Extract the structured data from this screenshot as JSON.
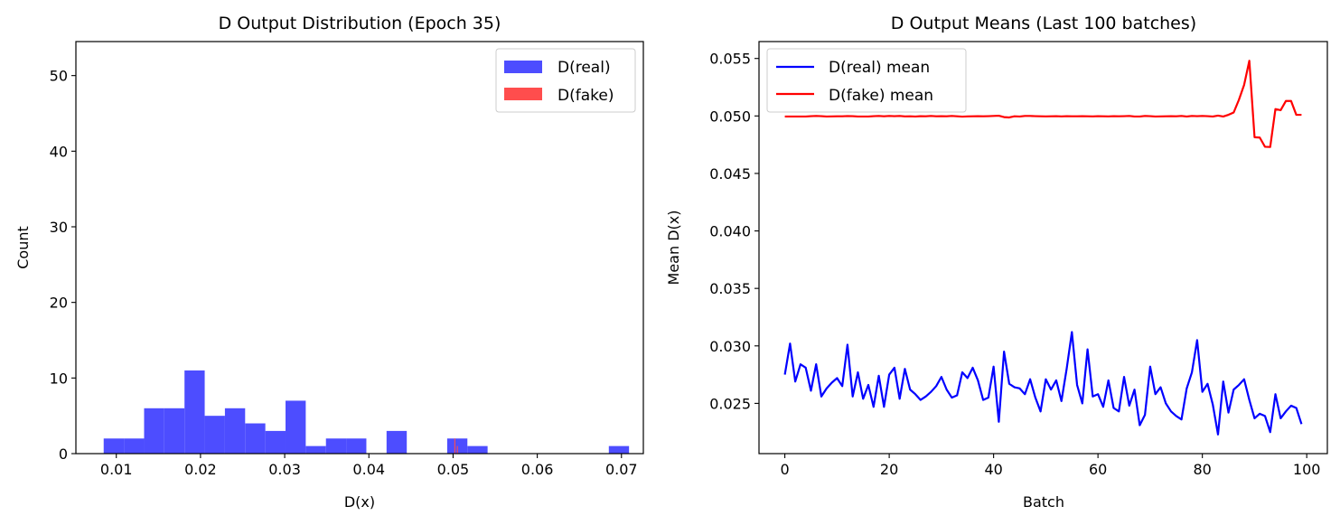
{
  "chart_data": [
    {
      "type": "bar",
      "title": "D Output Distribution (Epoch 35)",
      "xlabel": "D(x)",
      "ylabel": "Count",
      "xlim": [
        0.0052,
        0.0726
      ],
      "ylim": [
        0,
        54.5
      ],
      "xticks": [
        "0.01",
        "0.02",
        "0.03",
        "0.04",
        "0.05",
        "0.06",
        "0.07"
      ],
      "xtick_values": [
        0.01,
        0.02,
        0.03,
        0.04,
        0.05,
        0.06,
        0.07
      ],
      "yticks": [
        "0",
        "10",
        "20",
        "30",
        "40",
        "50"
      ],
      "ytick_values": [
        0,
        10,
        20,
        30,
        40,
        50
      ],
      "grid": false,
      "legend_position": "top-right",
      "series": [
        {
          "name": "D(real)",
          "color": "#4d4dff",
          "bin_width": 0.0024,
          "bins": [
            {
              "x0": 0.0085,
              "count": 2
            },
            {
              "x0": 0.0109,
              "count": 2
            },
            {
              "x0": 0.0133,
              "count": 6
            },
            {
              "x0": 0.0157,
              "count": 6
            },
            {
              "x0": 0.0181,
              "count": 11
            },
            {
              "x0": 0.0205,
              "count": 5
            },
            {
              "x0": 0.0229,
              "count": 6
            },
            {
              "x0": 0.0253,
              "count": 4
            },
            {
              "x0": 0.0277,
              "count": 3
            },
            {
              "x0": 0.0301,
              "count": 7
            },
            {
              "x0": 0.0325,
              "count": 1
            },
            {
              "x0": 0.0349,
              "count": 2
            },
            {
              "x0": 0.0373,
              "count": 2
            },
            {
              "x0": 0.0421,
              "count": 3
            },
            {
              "x0": 0.0493,
              "count": 2
            },
            {
              "x0": 0.0517,
              "count": 1
            },
            {
              "x0": 0.0685,
              "count": 1
            }
          ]
        },
        {
          "name": "D(fake)",
          "color": "#ff4d4d",
          "bin_width": 0.00012,
          "bins": [
            {
              "x0": 0.05015,
              "count": 2
            },
            {
              "x0": 0.05045,
              "count": 1
            }
          ]
        }
      ]
    },
    {
      "type": "line",
      "title": "D Output Means (Last 100 batches)",
      "xlabel": "Batch",
      "ylabel": "Mean D(x)",
      "xlim": [
        -4.95,
        103.95
      ],
      "ylim": [
        0.02063,
        0.05647
      ],
      "xticks": [
        "0",
        "20",
        "40",
        "60",
        "80",
        "100"
      ],
      "xtick_values": [
        0,
        20,
        40,
        60,
        80,
        100
      ],
      "yticks": [
        "0.025",
        "0.030",
        "0.035",
        "0.040",
        "0.045",
        "0.050",
        "0.055"
      ],
      "ytick_values": [
        0.025,
        0.03,
        0.035,
        0.04,
        0.045,
        0.05,
        0.055
      ],
      "grid": false,
      "legend_position": "top-left",
      "series": [
        {
          "name": "D(real) mean",
          "color": "#0000ff",
          "values": [
            0.0275,
            0.0302,
            0.0269,
            0.0284,
            0.0281,
            0.0261,
            0.0284,
            0.0256,
            0.0263,
            0.0268,
            0.0272,
            0.0265,
            0.0301,
            0.0256,
            0.0277,
            0.0254,
            0.0266,
            0.0247,
            0.0274,
            0.0247,
            0.0275,
            0.0281,
            0.0254,
            0.028,
            0.0262,
            0.0258,
            0.0253,
            0.0256,
            0.026,
            0.0265,
            0.0273,
            0.0262,
            0.0255,
            0.0257,
            0.0277,
            0.0272,
            0.0281,
            0.027,
            0.0253,
            0.0255,
            0.0282,
            0.0234,
            0.0295,
            0.0267,
            0.0264,
            0.0263,
            0.0258,
            0.0271,
            0.0255,
            0.0243,
            0.0271,
            0.0262,
            0.027,
            0.0252,
            0.028,
            0.0312,
            0.0266,
            0.025,
            0.0297,
            0.0256,
            0.0258,
            0.0247,
            0.027,
            0.0246,
            0.0243,
            0.0273,
            0.0248,
            0.0262,
            0.0231,
            0.024,
            0.0282,
            0.0258,
            0.0264,
            0.025,
            0.0243,
            0.0239,
            0.0236,
            0.0263,
            0.0277,
            0.0305,
            0.026,
            0.0267,
            0.0249,
            0.0223,
            0.0269,
            0.0242,
            0.0262,
            0.0266,
            0.0271,
            0.0253,
            0.0237,
            0.0241,
            0.0239,
            0.0225,
            0.0258,
            0.0237,
            0.0243,
            0.0248,
            0.0246,
            0.0232
          ]
        },
        {
          "name": "D(fake) mean",
          "color": "#ff0000",
          "values": [
            0.04995,
            0.04995,
            0.04995,
            0.04995,
            0.04995,
            0.04998,
            0.05,
            0.04998,
            0.04995,
            0.04996,
            0.04997,
            0.04997,
            0.04999,
            0.04998,
            0.04995,
            0.04995,
            0.04995,
            0.04998,
            0.05,
            0.04997,
            0.05,
            0.04998,
            0.05,
            0.04996,
            0.04997,
            0.04995,
            0.04998,
            0.04997,
            0.05,
            0.04997,
            0.04998,
            0.04997,
            0.05,
            0.04997,
            0.04994,
            0.04996,
            0.04997,
            0.04998,
            0.04997,
            0.04998,
            0.05,
            0.05002,
            0.0499,
            0.04987,
            0.04997,
            0.04995,
            0.05,
            0.05,
            0.04998,
            0.04997,
            0.04996,
            0.04997,
            0.04998,
            0.04996,
            0.04998,
            0.04997,
            0.04997,
            0.04998,
            0.04997,
            0.04996,
            0.04998,
            0.04997,
            0.04996,
            0.04998,
            0.04997,
            0.04998,
            0.05,
            0.04995,
            0.04995,
            0.05,
            0.04998,
            0.04995,
            0.04996,
            0.04997,
            0.04998,
            0.04997,
            0.05,
            0.04995,
            0.05,
            0.04998,
            0.05,
            0.04998,
            0.04995,
            0.05003,
            0.04995,
            0.0501,
            0.0503,
            0.0514,
            0.0527,
            0.0548,
            0.04815,
            0.04812,
            0.04732,
            0.0473,
            0.0506,
            0.0505,
            0.0513,
            0.0513,
            0.0501,
            0.0501
          ]
        }
      ]
    }
  ]
}
